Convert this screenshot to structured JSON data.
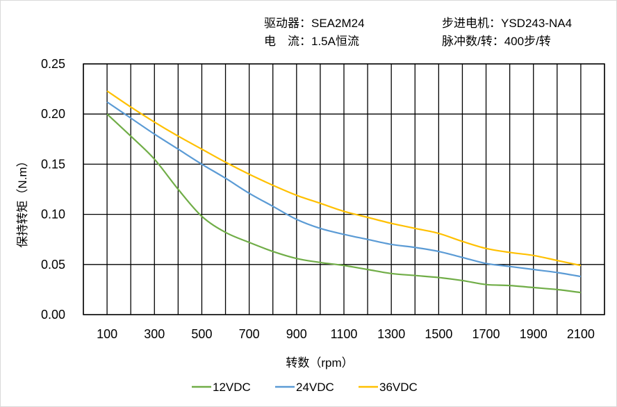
{
  "header": {
    "driver": "驱动器：SEA2M24",
    "current": "电　流：1.5A恒流",
    "motor": "步进电机：YSD243-NA4",
    "pulses": "脉冲数/转：400步/转"
  },
  "chart_data": {
    "type": "line",
    "xlabel": "转数（rpm）",
    "ylabel": "保持转矩（N.m）",
    "xlim": [
      0,
      2200
    ],
    "ylim": [
      0,
      0.25
    ],
    "grid": true,
    "legend_position": "bottom",
    "x_ticks": [
      "100",
      "300",
      "500",
      "700",
      "900",
      "1100",
      "1300",
      "1500",
      "1700",
      "1900",
      "2100"
    ],
    "y_ticks": [
      "0.00",
      "0.05",
      "0.10",
      "0.15",
      "0.20",
      "0.25"
    ],
    "x": [
      100,
      200,
      300,
      400,
      500,
      600,
      700,
      800,
      900,
      1000,
      1100,
      1200,
      1300,
      1400,
      1500,
      1600,
      1700,
      1800,
      1900,
      2000,
      2100
    ],
    "series": [
      {
        "name": "12VDC",
        "color": "#70ad47",
        "values": [
          0.2,
          0.178,
          0.155,
          0.125,
          0.098,
          0.082,
          0.072,
          0.063,
          0.056,
          0.052,
          0.049,
          0.045,
          0.041,
          0.039,
          0.037,
          0.034,
          0.03,
          0.029,
          0.027,
          0.025,
          0.022
        ]
      },
      {
        "name": "24VDC",
        "color": "#5b9bd5",
        "values": [
          0.212,
          0.196,
          0.18,
          0.165,
          0.15,
          0.136,
          0.121,
          0.108,
          0.095,
          0.086,
          0.08,
          0.075,
          0.07,
          0.067,
          0.063,
          0.057,
          0.051,
          0.048,
          0.045,
          0.042,
          0.038
        ]
      },
      {
        "name": "36VDC",
        "color": "#ffc000",
        "values": [
          0.223,
          0.207,
          0.192,
          0.178,
          0.165,
          0.152,
          0.14,
          0.129,
          0.119,
          0.111,
          0.103,
          0.097,
          0.091,
          0.086,
          0.081,
          0.073,
          0.066,
          0.062,
          0.059,
          0.054,
          0.049
        ]
      }
    ]
  }
}
